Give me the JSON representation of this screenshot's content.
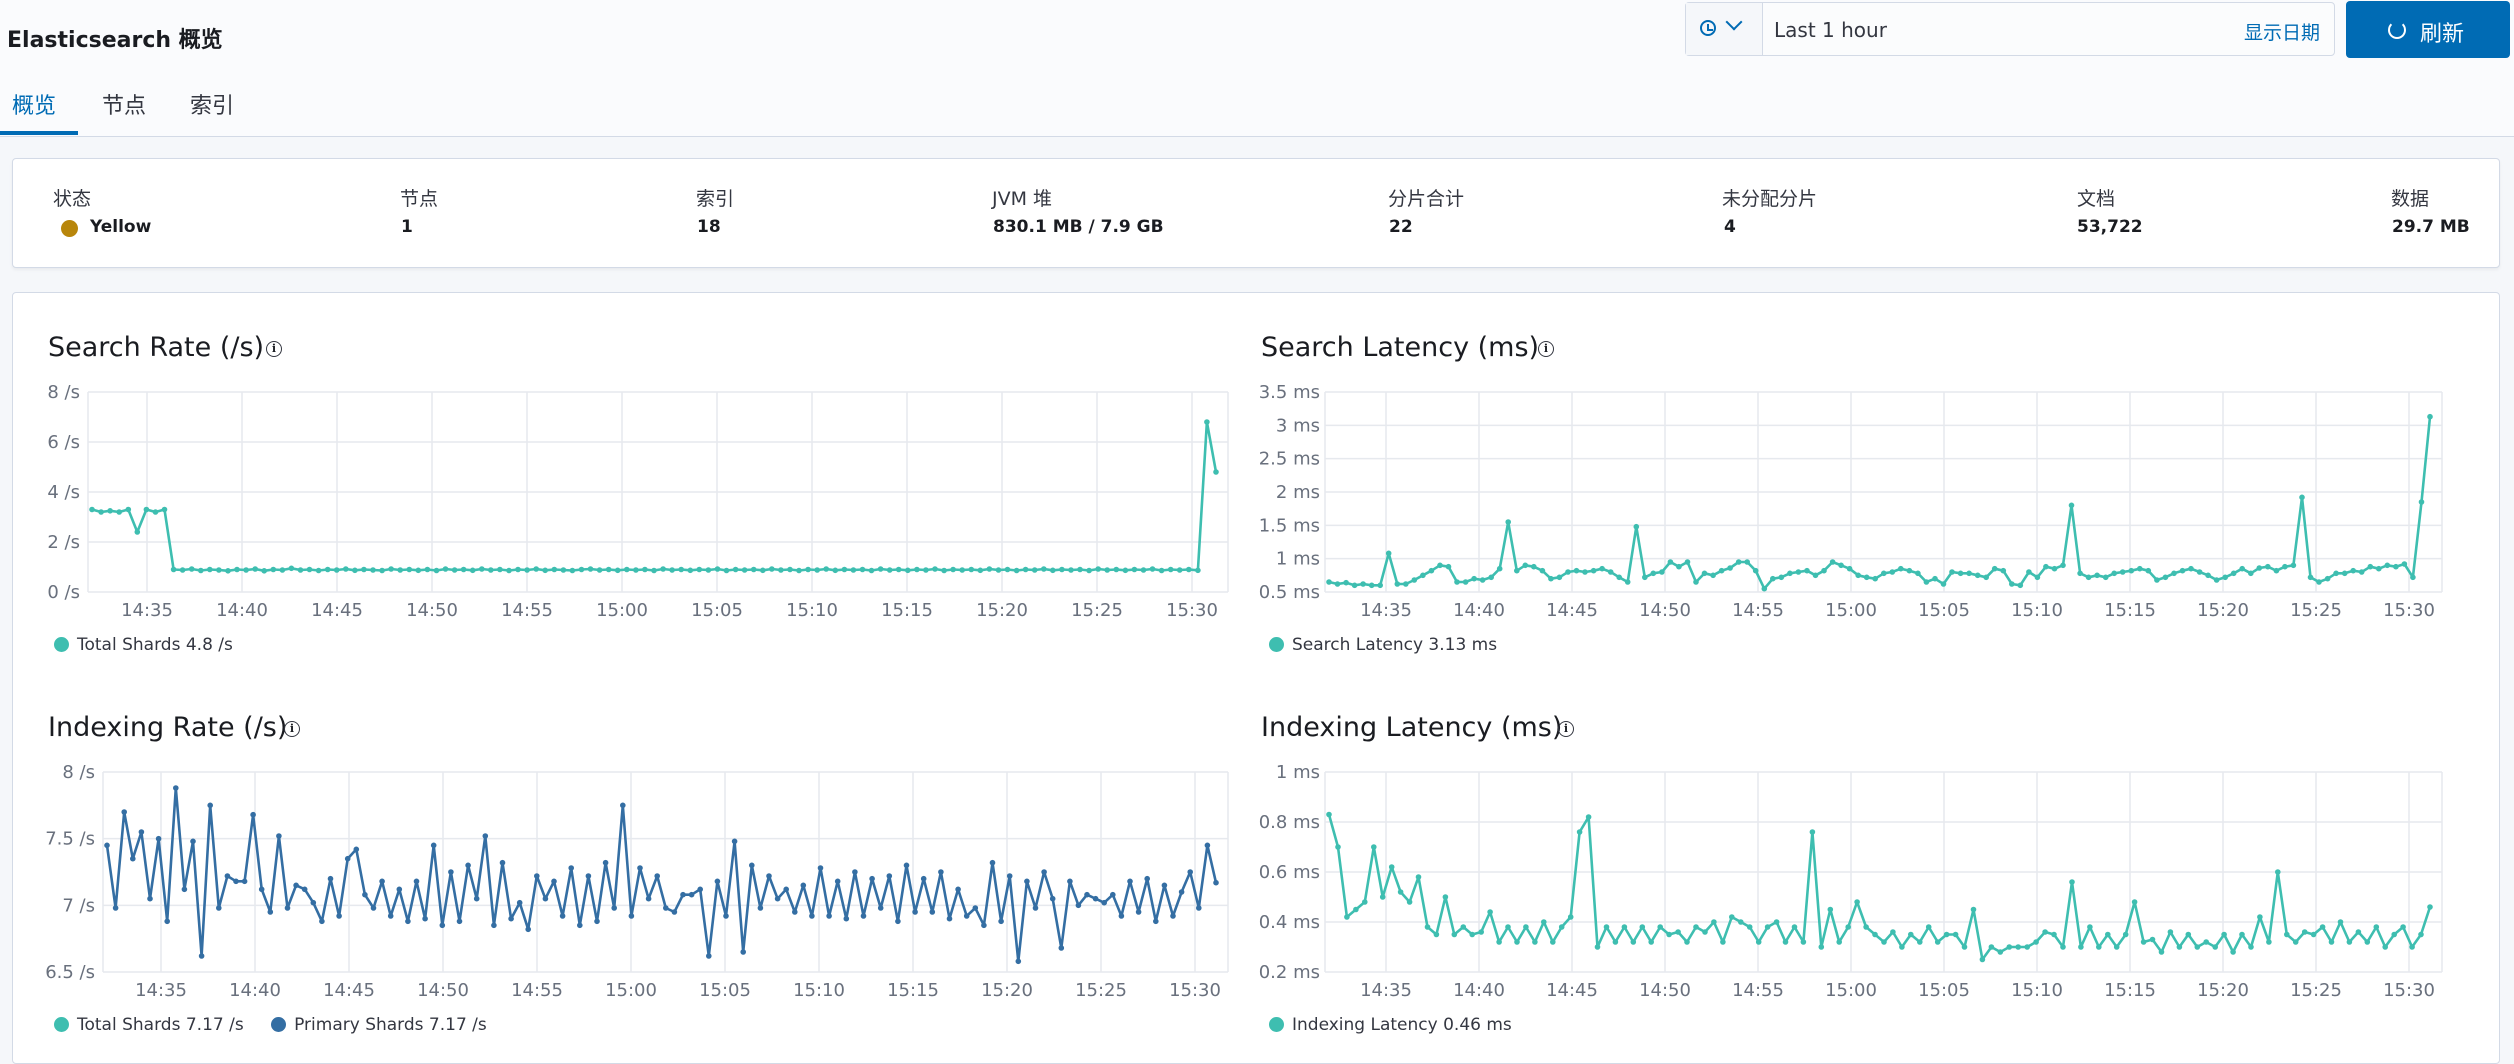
{
  "app_title": "Elasticsearch 概览",
  "timepicker": {
    "value": "Last 1 hour",
    "show_dates": "显示日期"
  },
  "refresh_label": "刷新",
  "tabs": [
    "概览",
    "节点",
    "索引"
  ],
  "colors": {
    "accent": "#006bb4",
    "teal": "#3ebeb0",
    "blue": "#346ea3",
    "yellow_status": "#b8860b"
  },
  "stats": [
    {
      "label": "状态",
      "value": "Yellow"
    },
    {
      "label": "节点",
      "value": "1"
    },
    {
      "label": "索引",
      "value": "18"
    },
    {
      "label": "JVM 堆",
      "value": "830.1 MB / 7.9 GB"
    },
    {
      "label": "分片合计",
      "value": "22"
    },
    {
      "label": "未分配分片",
      "value": "4"
    },
    {
      "label": "文档",
      "value": "53,722"
    },
    {
      "label": "数据",
      "value": "29.7 MB"
    }
  ],
  "chart_data": [
    {
      "type": "line",
      "title": "Search Rate (/s)",
      "ylim": [
        0,
        8
      ],
      "y_ticks": [
        "0 /s",
        "2 /s",
        "4 /s",
        "6 /s",
        "8 /s"
      ],
      "x_ticks": [
        "14:35",
        "14:40",
        "14:45",
        "14:50",
        "14:55",
        "15:00",
        "15:05",
        "15:10",
        "15:15",
        "15:20",
        "15:25",
        "15:30"
      ],
      "series": [
        {
          "name": "Total Shards",
          "legend_value": "4.8 /s",
          "color": "#3ebeb0",
          "values": [
            3.3,
            3.2,
            3.25,
            3.2,
            3.3,
            2.4,
            3.3,
            3.2,
            3.3,
            0.9,
            0.88,
            0.92,
            0.86,
            0.9,
            0.88,
            0.85,
            0.9,
            0.88,
            0.92,
            0.85,
            0.9,
            0.88,
            0.95,
            0.88,
            0.9,
            0.86,
            0.9,
            0.88,
            0.92,
            0.87,
            0.9,
            0.88,
            0.86,
            0.92,
            0.88,
            0.9,
            0.87,
            0.9,
            0.86,
            0.92,
            0.88,
            0.9,
            0.87,
            0.92,
            0.88,
            0.9,
            0.86,
            0.9,
            0.88,
            0.92,
            0.87,
            0.9,
            0.88,
            0.86,
            0.9,
            0.92,
            0.88,
            0.9,
            0.87,
            0.9,
            0.88,
            0.9,
            0.86,
            0.92,
            0.88,
            0.9,
            0.87,
            0.9,
            0.88,
            0.92,
            0.86,
            0.9,
            0.88,
            0.9,
            0.87,
            0.92,
            0.88,
            0.9,
            0.86,
            0.9,
            0.88,
            0.92,
            0.87,
            0.9,
            0.88,
            0.9,
            0.86,
            0.92,
            0.88,
            0.9,
            0.87,
            0.9,
            0.88,
            0.92,
            0.86,
            0.9,
            0.88,
            0.9,
            0.87,
            0.92,
            0.88,
            0.9,
            0.86,
            0.9,
            0.88,
            0.92,
            0.87,
            0.9,
            0.88,
            0.9,
            0.86,
            0.92,
            0.88,
            0.9,
            0.87,
            0.9,
            0.88,
            0.92,
            0.86,
            0.9,
            0.88,
            0.9,
            0.87,
            6.8,
            4.8
          ]
        }
      ]
    },
    {
      "type": "line",
      "title": "Search Latency (ms)",
      "ylim": [
        0.5,
        3.5
      ],
      "y_ticks": [
        "0.5 ms",
        "1 ms",
        "1.5 ms",
        "2 ms",
        "2.5 ms",
        "3 ms",
        "3.5 ms"
      ],
      "x_ticks": [
        "14:35",
        "14:40",
        "14:45",
        "14:50",
        "14:55",
        "15:00",
        "15:05",
        "15:10",
        "15:15",
        "15:20",
        "15:25",
        "15:30"
      ],
      "series": [
        {
          "name": "Search Latency",
          "legend_value": "3.13 ms",
          "color": "#3ebeb0",
          "values": [
            0.65,
            0.62,
            0.64,
            0.6,
            0.62,
            0.6,
            0.6,
            1.08,
            0.62,
            0.62,
            0.68,
            0.75,
            0.82,
            0.9,
            0.88,
            0.65,
            0.65,
            0.7,
            0.68,
            0.72,
            0.85,
            1.55,
            0.82,
            0.9,
            0.88,
            0.82,
            0.7,
            0.72,
            0.8,
            0.82,
            0.8,
            0.82,
            0.85,
            0.8,
            0.72,
            0.65,
            1.48,
            0.72,
            0.78,
            0.8,
            0.95,
            0.88,
            0.95,
            0.65,
            0.78,
            0.75,
            0.82,
            0.86,
            0.95,
            0.95,
            0.82,
            0.55,
            0.7,
            0.72,
            0.78,
            0.8,
            0.82,
            0.75,
            0.82,
            0.95,
            0.9,
            0.85,
            0.75,
            0.72,
            0.7,
            0.78,
            0.8,
            0.85,
            0.82,
            0.78,
            0.65,
            0.7,
            0.62,
            0.8,
            0.78,
            0.78,
            0.75,
            0.72,
            0.85,
            0.82,
            0.62,
            0.6,
            0.8,
            0.72,
            0.88,
            0.85,
            0.9,
            1.8,
            0.78,
            0.72,
            0.75,
            0.72,
            0.78,
            0.8,
            0.82,
            0.85,
            0.82,
            0.68,
            0.72,
            0.78,
            0.82,
            0.85,
            0.8,
            0.75,
            0.68,
            0.72,
            0.78,
            0.85,
            0.78,
            0.86,
            0.88,
            0.82,
            0.88,
            0.9,
            1.92,
            0.72,
            0.65,
            0.7,
            0.78,
            0.78,
            0.82,
            0.8,
            0.88,
            0.85,
            0.9,
            0.88,
            0.92,
            0.72,
            1.85,
            3.13
          ]
        }
      ]
    },
    {
      "type": "line",
      "title": "Indexing Rate (/s)",
      "ylim": [
        6.5,
        8
      ],
      "y_ticks": [
        "6.5 /s",
        "7 /s",
        "7.5 /s",
        "8 /s"
      ],
      "x_ticks": [
        "14:35",
        "14:40",
        "14:45",
        "14:50",
        "14:55",
        "15:00",
        "15:05",
        "15:10",
        "15:15",
        "15:20",
        "15:25",
        "15:30"
      ],
      "series": [
        {
          "name": "Total Shards",
          "legend_value": "7.17 /s",
          "color": "#3ebeb0",
          "values": []
        },
        {
          "name": "Primary Shards",
          "legend_value": "7.17 /s",
          "color": "#346ea3",
          "values": [
            7.45,
            6.98,
            7.7,
            7.35,
            7.55,
            7.05,
            7.5,
            6.88,
            7.88,
            7.12,
            7.48,
            6.62,
            7.75,
            6.98,
            7.22,
            7.18,
            7.18,
            7.68,
            7.12,
            6.95,
            7.52,
            6.98,
            7.15,
            7.12,
            7.02,
            6.88,
            7.2,
            6.92,
            7.35,
            7.42,
            7.08,
            6.98,
            7.18,
            6.92,
            7.12,
            6.88,
            7.18,
            6.9,
            7.45,
            6.85,
            7.25,
            6.88,
            7.3,
            7.05,
            7.52,
            6.85,
            7.32,
            6.9,
            7.02,
            6.82,
            7.22,
            7.05,
            7.18,
            6.92,
            7.28,
            6.85,
            7.22,
            6.88,
            7.32,
            6.98,
            7.75,
            6.92,
            7.28,
            7.05,
            7.22,
            6.98,
            6.95,
            7.08,
            7.08,
            7.12,
            6.62,
            7.18,
            6.92,
            7.48,
            6.65,
            7.3,
            6.98,
            7.22,
            7.05,
            7.12,
            6.95,
            7.15,
            6.92,
            7.28,
            6.92,
            7.18,
            6.9,
            7.25,
            6.92,
            7.2,
            6.98,
            7.22,
            6.88,
            7.3,
            6.95,
            7.2,
            6.95,
            7.25,
            6.9,
            7.12,
            6.92,
            6.98,
            6.85,
            7.32,
            6.88,
            7.22,
            6.58,
            7.18,
            6.98,
            7.25,
            7.05,
            6.68,
            7.18,
            7.0,
            7.08,
            7.05,
            7.02,
            7.08,
            6.92,
            7.18,
            6.95,
            7.2,
            6.88,
            7.15,
            6.92,
            7.1,
            7.25,
            6.98,
            7.45,
            7.17
          ]
        }
      ]
    },
    {
      "type": "line",
      "title": "Indexing Latency (ms)",
      "ylim": [
        0.2,
        1
      ],
      "y_ticks": [
        "0.2 ms",
        "0.4 ms",
        "0.6 ms",
        "0.8 ms",
        "1 ms"
      ],
      "x_ticks": [
        "14:35",
        "14:40",
        "14:45",
        "14:50",
        "14:55",
        "15:00",
        "15:05",
        "15:10",
        "15:15",
        "15:20",
        "15:25",
        "15:30"
      ],
      "series": [
        {
          "name": "Indexing Latency",
          "legend_value": "0.46 ms",
          "color": "#3ebeb0",
          "values": [
            0.83,
            0.7,
            0.42,
            0.45,
            0.48,
            0.7,
            0.5,
            0.62,
            0.52,
            0.48,
            0.58,
            0.38,
            0.35,
            0.5,
            0.35,
            0.38,
            0.35,
            0.36,
            0.44,
            0.32,
            0.38,
            0.32,
            0.38,
            0.32,
            0.4,
            0.32,
            0.38,
            0.42,
            0.76,
            0.82,
            0.3,
            0.38,
            0.32,
            0.38,
            0.32,
            0.38,
            0.32,
            0.38,
            0.35,
            0.36,
            0.32,
            0.38,
            0.36,
            0.4,
            0.32,
            0.42,
            0.4,
            0.38,
            0.32,
            0.38,
            0.4,
            0.32,
            0.38,
            0.32,
            0.76,
            0.3,
            0.45,
            0.32,
            0.38,
            0.48,
            0.38,
            0.35,
            0.32,
            0.36,
            0.3,
            0.35,
            0.32,
            0.38,
            0.32,
            0.35,
            0.35,
            0.3,
            0.45,
            0.25,
            0.3,
            0.28,
            0.3,
            0.3,
            0.3,
            0.32,
            0.36,
            0.35,
            0.3,
            0.56,
            0.3,
            0.38,
            0.3,
            0.35,
            0.3,
            0.35,
            0.48,
            0.32,
            0.33,
            0.28,
            0.36,
            0.3,
            0.35,
            0.3,
            0.32,
            0.3,
            0.35,
            0.28,
            0.35,
            0.3,
            0.42,
            0.32,
            0.6,
            0.35,
            0.32,
            0.36,
            0.35,
            0.38,
            0.32,
            0.4,
            0.32,
            0.36,
            0.32,
            0.38,
            0.3,
            0.35,
            0.38,
            0.3,
            0.35,
            0.46
          ]
        }
      ]
    }
  ]
}
